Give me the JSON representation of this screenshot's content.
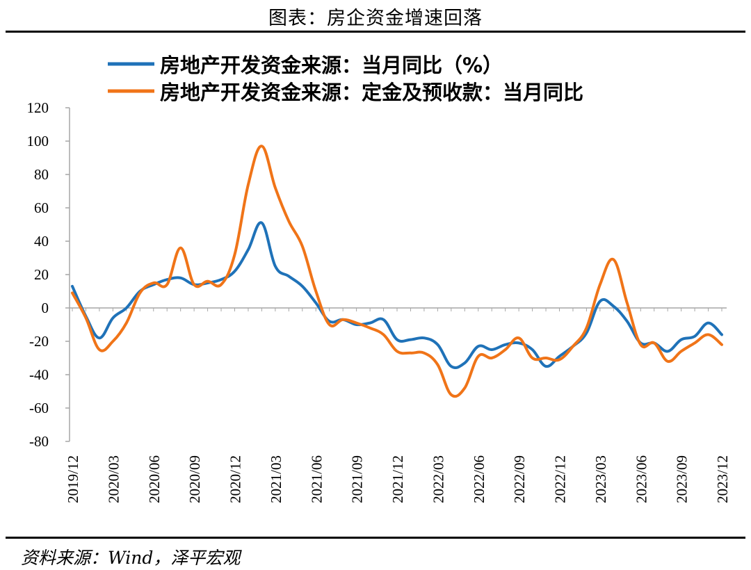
{
  "header": {
    "title": "图表：房企资金增速回落"
  },
  "footer": {
    "source": "资料来源：Wind，泽平宏观"
  },
  "colors": {
    "series_blue": "#1f72b8",
    "series_orange": "#f07418",
    "axis": "#a6a6a6",
    "zero_line": "#a6a6a6"
  },
  "chart_data": {
    "type": "line",
    "title": "",
    "xlabel": "",
    "ylabel": "",
    "ylim": [
      -80,
      120
    ],
    "yticks": [
      120,
      100,
      80,
      60,
      40,
      20,
      0,
      -20,
      -40,
      -60,
      -80
    ],
    "ytick_labels": [
      "120",
      "100",
      "80",
      "60",
      "40",
      "20",
      "0",
      "-20",
      "-40",
      "-60",
      "-80"
    ],
    "xtick_labels": [
      "2019/12",
      "2020/03",
      "2020/06",
      "2020/09",
      "2020/12",
      "2021/03",
      "2021/06",
      "2021/09",
      "2021/12",
      "2022/03",
      "2022/06",
      "2022/09",
      "2022/12",
      "2023/03",
      "2023/06",
      "2023/09",
      "2023/12"
    ],
    "grid": false,
    "legend_position": "top",
    "x": [
      "2019/12",
      "2020/01",
      "2020/02",
      "2020/03",
      "2020/04",
      "2020/05",
      "2020/06",
      "2020/07",
      "2020/08",
      "2020/09",
      "2020/10",
      "2020/11",
      "2020/12",
      "2021/01",
      "2021/02",
      "2021/03",
      "2021/04",
      "2021/05",
      "2021/06",
      "2021/07",
      "2021/08",
      "2021/09",
      "2021/10",
      "2021/11",
      "2021/12",
      "2022/01",
      "2022/02",
      "2022/03",
      "2022/04",
      "2022/05",
      "2022/06",
      "2022/07",
      "2022/08",
      "2022/09",
      "2022/10",
      "2022/11",
      "2022/12",
      "2023/01",
      "2023/02",
      "2023/03",
      "2023/04",
      "2023/05",
      "2023/06",
      "2023/07",
      "2023/08",
      "2023/09",
      "2023/10",
      "2023/11",
      "2023/12"
    ],
    "series": [
      {
        "name": "房地产开发资金来源：当月同比（%）",
        "color": "#1f72b8",
        "values": [
          13,
          -5,
          -18,
          -6,
          0,
          10,
          14,
          17,
          18,
          14,
          15,
          17,
          22,
          35,
          51,
          25,
          19,
          13,
          3,
          -8,
          -7,
          -10,
          -9,
          -7,
          -19,
          -19,
          -18,
          -22,
          -35,
          -33,
          -23,
          -25,
          -22,
          -21,
          -25,
          -35,
          -29,
          -23,
          -15,
          4,
          1,
          -8,
          -21,
          -21,
          -26,
          -19,
          -17,
          -9,
          -16
        ]
      },
      {
        "name": "房地产开发资金来源：定金及预收款：当月同比",
        "color": "#f07418",
        "values": [
          9,
          -6,
          -25,
          -20,
          -9,
          9,
          15,
          14,
          36,
          14,
          16,
          14,
          32,
          74,
          97,
          72,
          52,
          37,
          10,
          -10,
          -7,
          -9,
          -12,
          -16,
          -26,
          -27,
          -27,
          -34,
          -52,
          -48,
          -29,
          -30,
          -25,
          -18,
          -30,
          -30,
          -31,
          -23,
          -12,
          14,
          29,
          3,
          -22,
          -21,
          -32,
          -26,
          -21,
          -16,
          -22
        ]
      }
    ]
  }
}
